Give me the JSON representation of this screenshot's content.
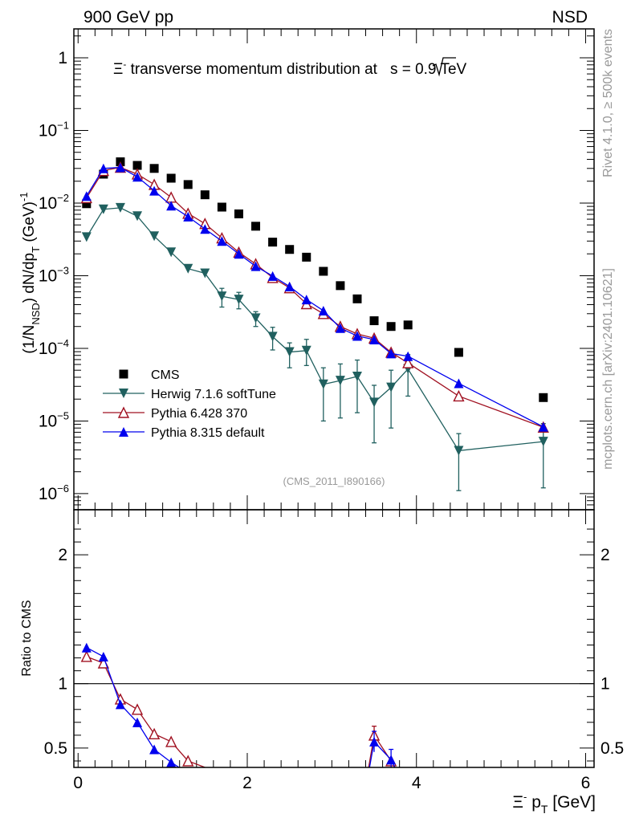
{
  "header": {
    "left_label": "900 GeV pp",
    "right_label": "NSD"
  },
  "side_labels": {
    "rivet": "Rivet 4.1.0, ≥ 500k events",
    "mcplots": "mcplots.cern.ch [arXiv:2401.10621]"
  },
  "source_label": "(CMS_2011_I890166)",
  "colors": {
    "cms": "#000000",
    "herwig": "#20605f",
    "pythia6": "#a01020",
    "pythia8": "#0000ee"
  },
  "chart_data": [
    {
      "type": "scatter",
      "panel": "main",
      "title": "Ξ⁻ transverse momentum distribution at √s = 0.9 TeV",
      "title_parts": {
        "particle": "Ξ",
        "charge": "-",
        "text": " transverse momentum distribution at",
        "sqrt_s": "s",
        "energy": " = 0.9 TeV"
      },
      "ylabel": "(1/N_NSD) dN/dp_T (GeV)^-1",
      "ylabel_parts": {
        "a": "(1/N",
        "sub": "NSD",
        "b": ") dN/dp",
        "sub2": "T",
        "c": " (GeV)",
        "sup": "-1"
      },
      "yscale": "log",
      "ylim": [
        6e-07,
        2.5
      ],
      "xlim": [
        -0.05,
        6.1
      ],
      "y_ticks": [
        {
          "value": 1,
          "label": "1"
        },
        {
          "value": 0.1,
          "label": "10",
          "exp": "−1"
        },
        {
          "value": 0.01,
          "label": "10",
          "exp": "−2"
        },
        {
          "value": 0.001,
          "label": "10",
          "exp": "−3"
        },
        {
          "value": 0.0001,
          "label": "10",
          "exp": "−4"
        },
        {
          "value": 1e-05,
          "label": "10",
          "exp": "−5"
        },
        {
          "value": 1e-06,
          "label": "10",
          "exp": "−6"
        }
      ],
      "legend_position": "lower-left",
      "series": [
        {
          "name": "CMS",
          "key": "cms",
          "marker": "square",
          "x": [
            0.1,
            0.3,
            0.5,
            0.7,
            0.9,
            1.1,
            1.3,
            1.5,
            1.7,
            1.9,
            2.1,
            2.3,
            2.5,
            2.7,
            2.9,
            3.1,
            3.3,
            3.5,
            3.7,
            3.9,
            4.5,
            5.5
          ],
          "y": [
            0.0098,
            0.025,
            0.037,
            0.033,
            0.03,
            0.022,
            0.018,
            0.013,
            0.0088,
            0.0071,
            0.0048,
            0.0029,
            0.0023,
            0.0018,
            0.00115,
            0.00073,
            0.00048,
            0.00024,
            0.0002,
            0.00021,
            8.8e-05,
            2.1e-05
          ]
        },
        {
          "name": "Herwig 7.1.6 softTune",
          "key": "herwig",
          "marker": "triangle-down",
          "line": true,
          "x": [
            0.1,
            0.3,
            0.5,
            0.7,
            0.9,
            1.1,
            1.3,
            1.5,
            1.7,
            1.9,
            2.1,
            2.3,
            2.5,
            2.7,
            2.9,
            3.1,
            3.3,
            3.5,
            3.7,
            3.9,
            4.5,
            5.5
          ],
          "y": [
            0.0034,
            0.0082,
            0.0086,
            0.0066,
            0.0035,
            0.0021,
            0.00125,
            0.00108,
            0.00052,
            0.00047,
            0.00026,
            0.000145,
            8.9e-05,
            9.3e-05,
            3.2e-05,
            3.6e-05,
            4.1e-05,
            1.8e-05,
            2.9e-05,
            5.2e-05,
            3.9e-06,
            5.2e-06
          ],
          "err_lo": [
            0,
            0,
            0,
            0,
            0,
            0,
            0,
            0,
            0.00015,
            0.00012,
            6e-05,
            5e-05,
            3.5e-05,
            3.5e-05,
            2.2e-05,
            2.5e-05,
            2.8e-05,
            1.3e-05,
            2.1e-05,
            3e-05,
            2.8e-06,
            4e-06
          ],
          "err_hi": [
            0,
            0,
            0,
            0,
            0,
            0,
            0,
            0,
            0.00015,
            0.00012,
            6e-05,
            5e-05,
            3e-05,
            4e-05,
            2.2e-05,
            2.5e-05,
            2.8e-05,
            1.3e-05,
            2.1e-05,
            3e-05,
            2.8e-06,
            4e-06
          ]
        },
        {
          "name": "Pythia 6.428 370",
          "key": "pythia6",
          "marker": "triangle-up-open",
          "line": true,
          "x": [
            0.1,
            0.3,
            0.5,
            0.7,
            0.9,
            1.1,
            1.3,
            1.5,
            1.7,
            1.9,
            2.1,
            2.3,
            2.5,
            2.7,
            2.9,
            3.1,
            3.3,
            3.5,
            3.7,
            3.9,
            4.5,
            5.5
          ],
          "y": [
            0.0118,
            0.028,
            0.031,
            0.025,
            0.018,
            0.012,
            0.0072,
            0.0052,
            0.0033,
            0.0021,
            0.00145,
            0.00094,
            0.00068,
            0.00041,
            0.0003,
            0.0002,
            0.000158,
            0.000138,
            8.8e-05,
            6.3e-05,
            2.2e-05,
            8.2e-06
          ],
          "err_lo": [],
          "err_hi": []
        },
        {
          "name": "Pythia 8.315 default",
          "key": "pythia8",
          "marker": "triangle-up",
          "line": true,
          "x": [
            0.1,
            0.3,
            0.5,
            0.7,
            0.9,
            1.1,
            1.3,
            1.5,
            1.7,
            1.9,
            2.1,
            2.3,
            2.5,
            2.7,
            2.9,
            3.1,
            3.3,
            3.5,
            3.7,
            3.9,
            4.5,
            5.5
          ],
          "y": [
            0.0125,
            0.03,
            0.031,
            0.023,
            0.0148,
            0.0092,
            0.0065,
            0.0044,
            0.003,
            0.002,
            0.00135,
            0.00099,
            0.00071,
            0.00047,
            0.00033,
            0.00019,
            0.000148,
            0.000132,
            8.5e-05,
            7.8e-05,
            3.3e-05,
            8.3e-06
          ]
        }
      ]
    },
    {
      "type": "line",
      "panel": "ratio",
      "ylabel": "Ratio to CMS",
      "xlabel": "Ξ⁻ p_T [GeV]",
      "xlabel_parts": {
        "particle": "Ξ",
        "charge": "-",
        "p": " p",
        "sub": "T",
        "unit": " [GeV]"
      },
      "ylim": [
        0.35,
        2.35
      ],
      "xlim": [
        -0.05,
        6.1
      ],
      "y_ticks": [
        {
          "value": 0.5,
          "label": "0.5"
        },
        {
          "value": 1,
          "label": "1"
        },
        {
          "value": 2,
          "label": "2"
        }
      ],
      "x_ticks": [
        {
          "value": 0,
          "label": "0"
        },
        {
          "value": 2,
          "label": "2"
        },
        {
          "value": 4,
          "label": "4"
        },
        {
          "value": 6,
          "label": "6"
        }
      ],
      "reference_line": 1,
      "series": [
        {
          "name": "Pythia 6.428 370",
          "key": "pythia6",
          "marker": "triangle-up-open",
          "segments": [
            {
              "x": [
                0.1,
                0.3,
                0.5,
                0.7,
                0.9,
                1.1,
                1.3,
                1.5,
                1.55
              ],
              "y": [
                1.21,
                1.16,
                0.88,
                0.8,
                0.61,
                0.55,
                0.4,
                0.35,
                0.33
              ]
            },
            {
              "x": [
                3.43,
                3.5,
                3.7,
                3.76
              ],
              "y": [
                0.33,
                0.6,
                0.4,
                0.33
              ]
            }
          ],
          "errors": [
            {
              "x": 3.5,
              "y": 0.6,
              "lo": 0.07,
              "hi": 0.07
            }
          ]
        },
        {
          "name": "Pythia 8.315 default",
          "key": "pythia8",
          "marker": "triangle-up",
          "segments": [
            {
              "x": [
                0.1,
                0.3,
                0.5,
                0.7,
                0.9,
                1.1,
                1.24
              ],
              "y": [
                1.28,
                1.21,
                0.84,
                0.7,
                0.49,
                0.39,
                0.33
              ]
            },
            {
              "x": [
                3.44,
                3.5,
                3.7,
                3.76
              ],
              "y": [
                0.33,
                0.55,
                0.41,
                0.33
              ]
            }
          ],
          "errors": [
            {
              "x": 3.5,
              "y": 0.55,
              "lo": 0.08,
              "hi": 0.08
            },
            {
              "x": 3.7,
              "y": 0.41,
              "lo": 0.08,
              "hi": 0.08
            }
          ]
        }
      ]
    }
  ]
}
